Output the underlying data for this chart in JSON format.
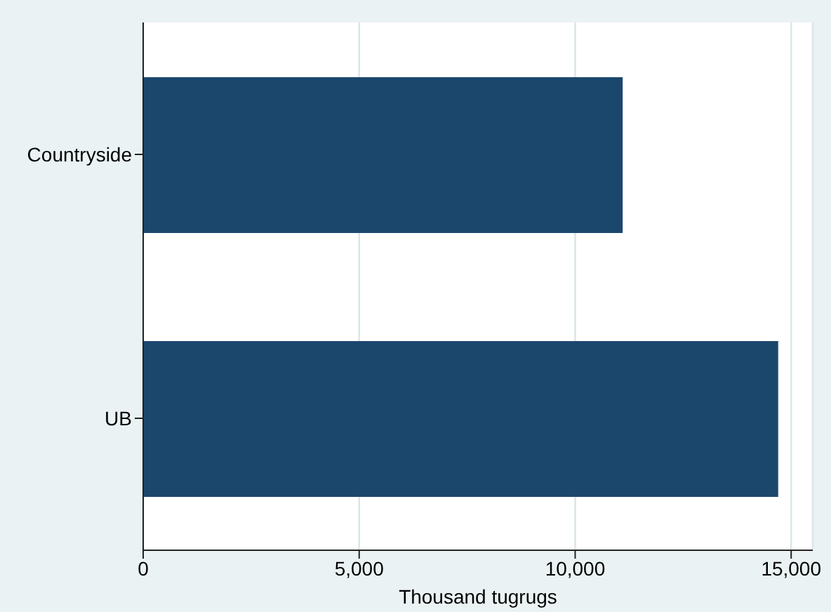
{
  "chart_data": {
    "type": "bar",
    "orientation": "horizontal",
    "xlabel": "Thousand tugrugs",
    "categories": [
      "Countryside",
      "UB"
    ],
    "values": [
      11100,
      14700
    ],
    "color": "#1c476d",
    "xlim": [
      0,
      15500
    ],
    "xticks": [
      {
        "value": 0,
        "label": "0"
      },
      {
        "value": 5000,
        "label": "5,000"
      },
      {
        "value": 10000,
        "label": "10,000"
      },
      {
        "value": 15000,
        "label": "15,000"
      }
    ],
    "grid": "x"
  }
}
